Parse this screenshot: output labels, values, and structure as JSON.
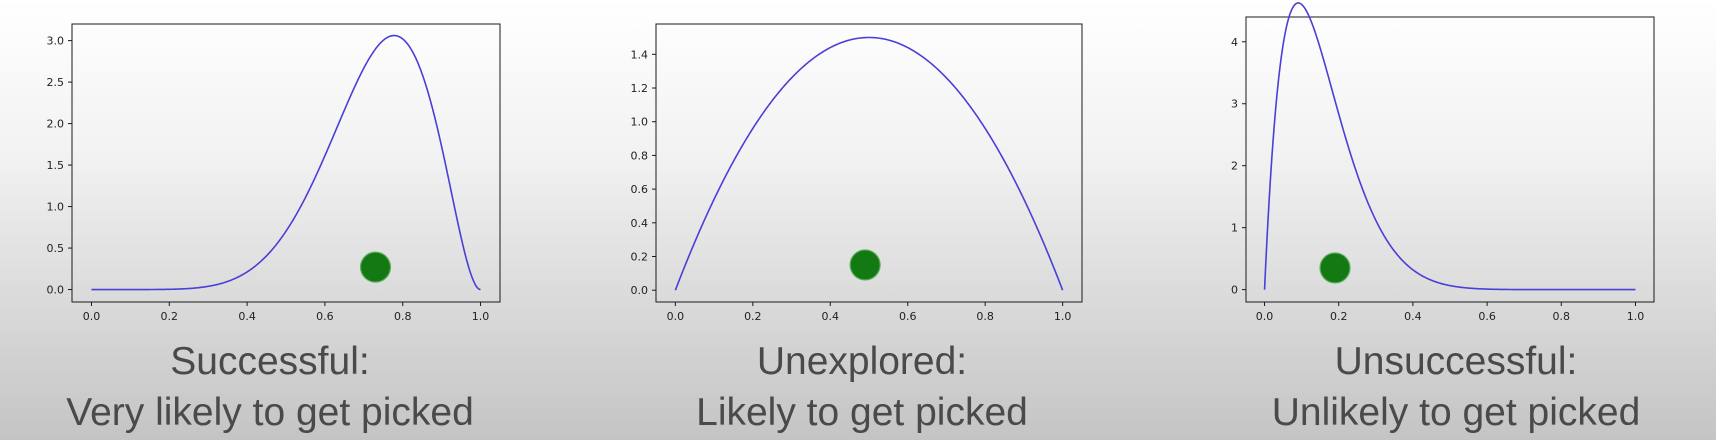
{
  "chart_data": [
    {
      "type": "line",
      "distribution": "beta",
      "params": {
        "alpha": 8,
        "beta": 3
      },
      "x_ticks": [
        "0.0",
        "0.2",
        "0.4",
        "0.6",
        "0.8",
        "1.0"
      ],
      "y_ticks": [
        "0.0",
        "0.5",
        "1.0",
        "1.5",
        "2.0",
        "2.5",
        "3.0"
      ],
      "xlim": [
        -0.05,
        1.05
      ],
      "ylim": [
        -0.15,
        3.2
      ],
      "line_color": "#4a3fd6",
      "marker": {
        "x": 0.73,
        "y": 0.27,
        "color": "#137a13"
      },
      "grid": false,
      "caption": {
        "line1": "Successful:",
        "line2": "Very likely to get picked"
      }
    },
    {
      "type": "line",
      "distribution": "beta",
      "params": {
        "alpha": 2,
        "beta": 2
      },
      "x_ticks": [
        "0.0",
        "0.2",
        "0.4",
        "0.6",
        "0.8",
        "1.0"
      ],
      "y_ticks": [
        "0.0",
        "0.2",
        "0.4",
        "0.6",
        "0.8",
        "1.0",
        "1.2",
        "1.4"
      ],
      "xlim": [
        -0.05,
        1.05
      ],
      "ylim": [
        -0.07,
        1.58
      ],
      "line_color": "#4a3fd6",
      "marker": {
        "x": 0.49,
        "y": 0.15,
        "color": "#137a13"
      },
      "grid": false,
      "caption": {
        "line1": "Unexplored:",
        "line2": "Likely to get picked"
      }
    },
    {
      "type": "line",
      "distribution": "beta",
      "params": {
        "alpha": 2,
        "beta": 11
      },
      "x_ticks": [
        "0.0",
        "0.2",
        "0.4",
        "0.6",
        "0.8",
        "1.0"
      ],
      "y_ticks": [
        "0",
        "1",
        "2",
        "3",
        "4"
      ],
      "xlim": [
        -0.05,
        1.05
      ],
      "ylim": [
        -0.2,
        4.4
      ],
      "line_color": "#4a3fd6",
      "marker": {
        "x": 0.19,
        "y": 0.35,
        "color": "#137a13"
      },
      "grid": false,
      "caption": {
        "line1": "Unsuccessful:",
        "line2": "Unlikely to get picked"
      }
    }
  ]
}
